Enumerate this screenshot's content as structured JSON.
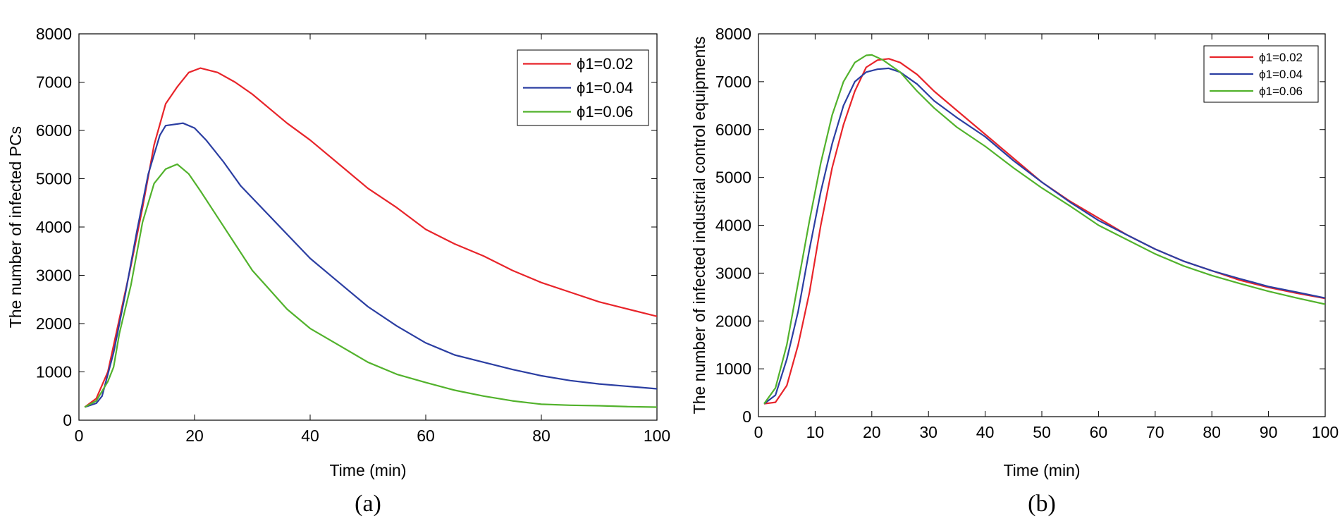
{
  "chart_data": [
    {
      "type": "line",
      "id": "a",
      "caption": "(a)",
      "title": "",
      "xlabel": "Time (min)",
      "ylabel": "The number of infected PCs",
      "xlim": [
        0,
        100
      ],
      "ylim": [
        0,
        8000
      ],
      "xticks": [
        0,
        20,
        40,
        60,
        80,
        100
      ],
      "yticks": [
        0,
        1000,
        2000,
        3000,
        4000,
        5000,
        6000,
        7000,
        8000
      ],
      "grid": false,
      "legend_position": "top-right",
      "series": [
        {
          "name": "ϕ1=0.02",
          "color": "#e8242a",
          "points": [
            [
              1,
              270
            ],
            [
              3,
              450
            ],
            [
              5,
              1000
            ],
            [
              7,
              2100
            ],
            [
              9,
              3200
            ],
            [
              11,
              4400
            ],
            [
              13,
              5700
            ],
            [
              15,
              6550
            ],
            [
              17,
              6900
            ],
            [
              19,
              7200
            ],
            [
              21,
              7290
            ],
            [
              24,
              7200
            ],
            [
              27,
              7000
            ],
            [
              30,
              6750
            ],
            [
              33,
              6450
            ],
            [
              36,
              6150
            ],
            [
              40,
              5800
            ],
            [
              45,
              5300
            ],
            [
              50,
              4800
            ],
            [
              55,
              4400
            ],
            [
              60,
              3950
            ],
            [
              65,
              3650
            ],
            [
              70,
              3400
            ],
            [
              75,
              3100
            ],
            [
              80,
              2850
            ],
            [
              85,
              2650
            ],
            [
              90,
              2450
            ],
            [
              95,
              2300
            ],
            [
              100,
              2150
            ]
          ]
        },
        {
          "name": "ϕ1=0.04",
          "color": "#2b3ea2",
          "points": [
            [
              1,
              270
            ],
            [
              3,
              350
            ],
            [
              4,
              500
            ],
            [
              6,
              1400
            ],
            [
              8,
              2600
            ],
            [
              10,
              3900
            ],
            [
              12,
              5100
            ],
            [
              14,
              5900
            ],
            [
              15,
              6100
            ],
            [
              18,
              6150
            ],
            [
              20,
              6050
            ],
            [
              22,
              5800
            ],
            [
              25,
              5350
            ],
            [
              28,
              4850
            ],
            [
              32,
              4350
            ],
            [
              36,
              3850
            ],
            [
              40,
              3350
            ],
            [
              45,
              2850
            ],
            [
              50,
              2350
            ],
            [
              55,
              1950
            ],
            [
              60,
              1600
            ],
            [
              65,
              1350
            ],
            [
              70,
              1200
            ],
            [
              75,
              1050
            ],
            [
              80,
              920
            ],
            [
              85,
              820
            ],
            [
              90,
              750
            ],
            [
              95,
              700
            ],
            [
              100,
              650
            ]
          ]
        },
        {
          "name": "ϕ1=0.06",
          "color": "#52b22c",
          "points": [
            [
              1,
              270
            ],
            [
              3,
              400
            ],
            [
              5,
              800
            ],
            [
              6,
              1100
            ],
            [
              7,
              1800
            ],
            [
              9,
              2800
            ],
            [
              11,
              4100
            ],
            [
              13,
              4900
            ],
            [
              15,
              5200
            ],
            [
              17,
              5300
            ],
            [
              19,
              5100
            ],
            [
              21,
              4750
            ],
            [
              24,
              4200
            ],
            [
              27,
              3650
            ],
            [
              30,
              3100
            ],
            [
              33,
              2700
            ],
            [
              36,
              2300
            ],
            [
              40,
              1900
            ],
            [
              45,
              1550
            ],
            [
              50,
              1200
            ],
            [
              55,
              950
            ],
            [
              60,
              780
            ],
            [
              65,
              620
            ],
            [
              70,
              500
            ],
            [
              75,
              400
            ],
            [
              80,
              330
            ],
            [
              85,
              310
            ],
            [
              90,
              300
            ],
            [
              95,
              280
            ],
            [
              100,
              270
            ]
          ]
        }
      ]
    },
    {
      "type": "line",
      "id": "b",
      "caption": "(b)",
      "title": "",
      "xlabel": "Time (min)",
      "ylabel": "The number of infected industrial control equipments",
      "xlim": [
        0,
        100
      ],
      "ylim": [
        0,
        8000
      ],
      "xticks": [
        0,
        10,
        20,
        30,
        40,
        50,
        60,
        70,
        80,
        90,
        100
      ],
      "yticks": [
        0,
        1000,
        2000,
        3000,
        4000,
        5000,
        6000,
        7000,
        8000
      ],
      "grid": false,
      "legend_position": "top-right",
      "series": [
        {
          "name": "ϕ1=0.02",
          "color": "#e8242a",
          "points": [
            [
              1,
              270
            ],
            [
              3,
              300
            ],
            [
              5,
              650
            ],
            [
              7,
              1500
            ],
            [
              9,
              2600
            ],
            [
              11,
              4000
            ],
            [
              13,
              5200
            ],
            [
              15,
              6100
            ],
            [
              17,
              6800
            ],
            [
              19,
              7300
            ],
            [
              21,
              7450
            ],
            [
              23,
              7480
            ],
            [
              25,
              7400
            ],
            [
              28,
              7150
            ],
            [
              31,
              6800
            ],
            [
              35,
              6400
            ],
            [
              40,
              5900
            ],
            [
              45,
              5400
            ],
            [
              50,
              4900
            ],
            [
              55,
              4500
            ],
            [
              60,
              4150
            ],
            [
              65,
              3800
            ],
            [
              70,
              3500
            ],
            [
              75,
              3250
            ],
            [
              80,
              3050
            ],
            [
              85,
              2850
            ],
            [
              90,
              2700
            ],
            [
              95,
              2580
            ],
            [
              100,
              2470
            ]
          ]
        },
        {
          "name": "ϕ1=0.04",
          "color": "#2b3ea2",
          "points": [
            [
              1,
              270
            ],
            [
              3,
              450
            ],
            [
              5,
              1200
            ],
            [
              7,
              2200
            ],
            [
              9,
              3500
            ],
            [
              11,
              4700
            ],
            [
              13,
              5700
            ],
            [
              15,
              6500
            ],
            [
              17,
              7000
            ],
            [
              19,
              7200
            ],
            [
              21,
              7260
            ],
            [
              23,
              7280
            ],
            [
              25,
              7200
            ],
            [
              28,
              6950
            ],
            [
              31,
              6600
            ],
            [
              35,
              6250
            ],
            [
              40,
              5850
            ],
            [
              45,
              5350
            ],
            [
              50,
              4900
            ],
            [
              55,
              4480
            ],
            [
              60,
              4100
            ],
            [
              65,
              3800
            ],
            [
              70,
              3500
            ],
            [
              75,
              3250
            ],
            [
              80,
              3050
            ],
            [
              85,
              2880
            ],
            [
              90,
              2720
            ],
            [
              95,
              2600
            ],
            [
              100,
              2480
            ]
          ]
        },
        {
          "name": "ϕ1=0.06",
          "color": "#52b22c",
          "points": [
            [
              1,
              270
            ],
            [
              3,
              600
            ],
            [
              5,
              1500
            ],
            [
              7,
              2800
            ],
            [
              9,
              4100
            ],
            [
              11,
              5300
            ],
            [
              13,
              6300
            ],
            [
              15,
              7000
            ],
            [
              17,
              7400
            ],
            [
              19,
              7550
            ],
            [
              20,
              7560
            ],
            [
              22,
              7450
            ],
            [
              25,
              7200
            ],
            [
              28,
              6800
            ],
            [
              31,
              6450
            ],
            [
              35,
              6050
            ],
            [
              40,
              5650
            ],
            [
              45,
              5200
            ],
            [
              50,
              4780
            ],
            [
              55,
              4400
            ],
            [
              60,
              4000
            ],
            [
              65,
              3700
            ],
            [
              70,
              3400
            ],
            [
              75,
              3150
            ],
            [
              80,
              2950
            ],
            [
              85,
              2780
            ],
            [
              90,
              2620
            ],
            [
              95,
              2480
            ],
            [
              100,
              2350
            ]
          ]
        }
      ]
    }
  ]
}
